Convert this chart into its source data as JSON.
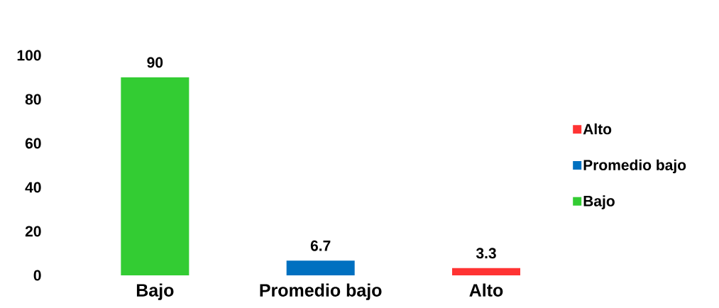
{
  "chart_data": {
    "type": "bar",
    "categories": [
      "Bajo",
      "Promedio bajo",
      "Alto"
    ],
    "series": [
      {
        "name": "Alto",
        "color": "#ff3333",
        "values": [
          null,
          null,
          3.3
        ]
      },
      {
        "name": "Promedio bajo",
        "color": "#0070c0",
        "values": [
          null,
          6.7,
          null
        ]
      },
      {
        "name": "Bajo",
        "color": "#33cc33",
        "values": [
          90,
          null,
          null
        ]
      }
    ],
    "ylim": [
      0,
      100
    ],
    "yticks": [
      0,
      20,
      40,
      60,
      80,
      100
    ],
    "data_labels": true,
    "legend": "right"
  }
}
